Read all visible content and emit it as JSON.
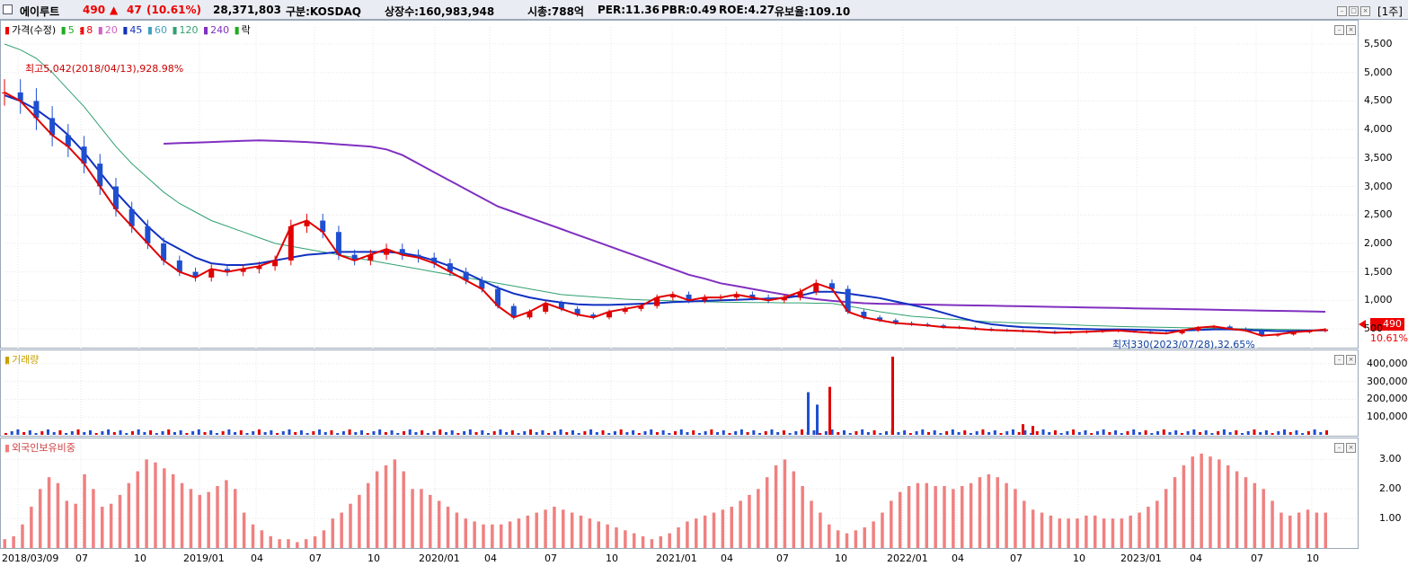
{
  "header": {
    "name": "에이루트",
    "price": "490",
    "arrow": "▲",
    "change": "47",
    "change_pct": "(10.61%)",
    "volume": "28,371,803",
    "market": "구분:KOSDAQ",
    "shares": "상장수:160,983,948",
    "mcap": "시총:788억",
    "per": "PER:11.36",
    "pbr": "PBR:0.49",
    "roe": "ROE:4.27",
    "float": "유보율:109.10",
    "unit": "[1주]"
  },
  "legend": {
    "price": "가격(수정)",
    "ma5": "5",
    "ma8": "8",
    "ma20": "20",
    "ma45": "45",
    "ma60": "60",
    "ma120": "120",
    "ma240": "240",
    "down": "락",
    "volume": "거래량",
    "foreign": "외국인보유비중"
  },
  "annotations": {
    "high": "최고5,042(2018/04/13),928.98%",
    "low": "최저330(2023/07/28),32.65%",
    "last_price": "490",
    "last_pct": "10.61%"
  },
  "colors": {
    "up": "#e00000",
    "down": "#1f4fd0",
    "ma5": "#22aa22",
    "ma8": "#e00000",
    "ma20": "#d060c0",
    "ma45": "#1030c0",
    "ma60": "#40a0c0",
    "ma120": "#30a070",
    "ma240": "#8030c0",
    "foreign_bar": "#f08080"
  },
  "chart_data": [
    {
      "type": "line",
      "name": "price",
      "x_ticks": [
        "2018/03/09",
        "07",
        "10",
        "2019/01",
        "04",
        "07",
        "10",
        "2020/01",
        "04",
        "07",
        "10",
        "2021/01",
        "04",
        "07",
        "10",
        "2022/01",
        "04",
        "07",
        "10",
        "2023/01",
        "04",
        "07",
        "10"
      ],
      "y_ticks": [
        "500",
        "1,000",
        "1,500",
        "2,000",
        "2,500",
        "3,000",
        "3,500",
        "4,000",
        "4,500",
        "5,000",
        "5,500"
      ],
      "ylim": [
        200,
        5800
      ],
      "close": [
        4650,
        4500,
        4200,
        3900,
        3700,
        3400,
        3000,
        2600,
        2300,
        2000,
        1700,
        1500,
        1400,
        1550,
        1500,
        1550,
        1600,
        1700,
        2300,
        2400,
        2200,
        1800,
        1700,
        1800,
        1900,
        1800,
        1750,
        1650,
        1500,
        1350,
        1200,
        900,
        700,
        800,
        950,
        850,
        750,
        700,
        800,
        850,
        900,
        1050,
        1100,
        1000,
        1050,
        1050,
        1100,
        1050,
        1000,
        1050,
        1150,
        1300,
        1200,
        800,
        700,
        650,
        600,
        580,
        560,
        530,
        520,
        500,
        480,
        470,
        460,
        450,
        430,
        440,
        450,
        460,
        470,
        450,
        430,
        420,
        470,
        520,
        540,
        500,
        470,
        380,
        400,
        440,
        460,
        490
      ],
      "ma45": [
        4600,
        4500,
        4350,
        4150,
        3900,
        3600,
        3250,
        2900,
        2600,
        2300,
        2050,
        1900,
        1750,
        1650,
        1620,
        1620,
        1650,
        1700,
        1750,
        1800,
        1820,
        1850,
        1850,
        1850,
        1850,
        1830,
        1780,
        1700,
        1600,
        1480,
        1350,
        1220,
        1120,
        1050,
        1000,
        960,
        930,
        920,
        920,
        930,
        940,
        950,
        970,
        980,
        990,
        1000,
        1010,
        1020,
        1030,
        1040,
        1080,
        1150,
        1150,
        1120,
        1080,
        1040,
        980,
        920,
        860,
        780,
        700,
        630,
        580,
        550,
        530,
        520,
        510,
        500,
        495,
        490,
        490,
        485,
        480,
        470,
        470,
        480,
        490,
        490,
        480,
        470,
        460,
        460,
        470,
        475
      ],
      "ma120": [
        5500,
        5400,
        5250,
        5000,
        4700,
        4400,
        4050,
        3700,
        3400,
        3150,
        2900,
        2700,
        2550,
        2400,
        2300,
        2200,
        2100,
        2000,
        1950,
        1900,
        1850,
        1800,
        1750,
        1700,
        1650,
        1600,
        1550,
        1500,
        1450,
        1400,
        1350,
        1300,
        1250,
        1200,
        1150,
        1100,
        1080,
        1060,
        1040,
        1020,
        1010,
        1000,
        990,
        980,
        975,
        970,
        965,
        960,
        960,
        955,
        955,
        950,
        945,
        900,
        850,
        800,
        760,
        720,
        700,
        680,
        660,
        640,
        620,
        610,
        600,
        590,
        580,
        570,
        560,
        550,
        540,
        535,
        530,
        525,
        520,
        515,
        510,
        505,
        500,
        495,
        490,
        485,
        480,
        475
      ],
      "ma240": [
        null,
        null,
        null,
        null,
        null,
        null,
        null,
        null,
        null,
        null,
        3750,
        3760,
        3770,
        3780,
        3790,
        3800,
        3810,
        3800,
        3790,
        3780,
        3760,
        3740,
        3720,
        3700,
        3650,
        3550,
        3400,
        3250,
        3100,
        2950,
        2800,
        2650,
        2550,
        2450,
        2350,
        2250,
        2150,
        2050,
        1950,
        1850,
        1750,
        1650,
        1550,
        1450,
        1380,
        1300,
        1250,
        1200,
        1150,
        1100,
        1060,
        1020,
        990,
        970,
        950,
        940,
        935,
        930,
        925,
        920,
        915,
        910,
        905,
        900,
        895,
        890,
        885,
        880,
        875,
        870,
        865,
        860,
        855,
        850,
        845,
        840,
        835,
        830,
        825,
        820,
        815,
        810,
        805,
        800
      ]
    },
    {
      "type": "bar",
      "name": "volume",
      "y_ticks": [
        "100,000",
        "200,000",
        "300,000",
        "400,000"
      ],
      "ylim": [
        0,
        450000
      ],
      "spikes": [
        240000,
        170000,
        270000,
        440000,
        60000,
        50000
      ],
      "spike_labels": [
        "2021/07",
        "2021/07",
        "2021/08",
        "2021/12",
        "2022/10",
        "2022/10"
      ]
    },
    {
      "type": "bar",
      "name": "foreign_ratio",
      "y_ticks": [
        "1.00",
        "2.00",
        "3.00"
      ],
      "ylim": [
        0,
        3.5
      ],
      "values": [
        0.3,
        0.4,
        0.8,
        1.4,
        2.0,
        2.4,
        2.2,
        1.6,
        1.5,
        2.5,
        2.0,
        1.4,
        1.5,
        1.8,
        2.2,
        2.6,
        3.0,
        2.9,
        2.7,
        2.5,
        2.2,
        2.0,
        1.8,
        1.9,
        2.1,
        2.3,
        2.0,
        1.2,
        0.8,
        0.6,
        0.4,
        0.3,
        0.3,
        0.2,
        0.3,
        0.4,
        0.6,
        1.0,
        1.2,
        1.5,
        1.8,
        2.2,
        2.6,
        2.8,
        3.0,
        2.6,
        2.0,
        2.0,
        1.8,
        1.6,
        1.4,
        1.2,
        1.0,
        0.9,
        0.8,
        0.8,
        0.8,
        0.9,
        1.0,
        1.1,
        1.2,
        1.3,
        1.4,
        1.3,
        1.2,
        1.1,
        1.0,
        0.9,
        0.8,
        0.7,
        0.6,
        0.5,
        0.4,
        0.3,
        0.4,
        0.5,
        0.7,
        0.9,
        1.0,
        1.1,
        1.2,
        1.3,
        1.4,
        1.6,
        1.8,
        2.0,
        2.4,
        2.8,
        3.0,
        2.6,
        2.1,
        1.6,
        1.2,
        0.8,
        0.6,
        0.5,
        0.6,
        0.7,
        0.9,
        1.2,
        1.6,
        1.9,
        2.1,
        2.2,
        2.2,
        2.1,
        2.1,
        2.0,
        2.1,
        2.2,
        2.4,
        2.5,
        2.4,
        2.2,
        2.0,
        1.6,
        1.3,
        1.2,
        1.1,
        1.0,
        1.0,
        1.0,
        1.1,
        1.1,
        1.0,
        1.0,
        1.0,
        1.1,
        1.2,
        1.4,
        1.6,
        2.0,
        2.4,
        2.8,
        3.1,
        3.2,
        3.1,
        3.0,
        2.8,
        2.6,
        2.4,
        2.2,
        2.0,
        1.6,
        1.2,
        1.1,
        1.2,
        1.3,
        1.2,
        1.2
      ]
    }
  ]
}
